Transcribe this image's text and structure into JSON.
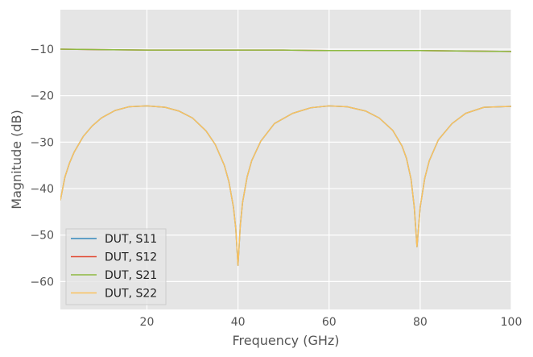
{
  "chart_data": {
    "type": "line",
    "xlabel": "Frequency (GHz)",
    "ylabel": "Magnitude (dB)",
    "xlim": [
      1,
      100
    ],
    "ylim": [
      -66,
      -1.5
    ],
    "x_ticks": [
      20,
      40,
      60,
      80,
      100
    ],
    "y_ticks": [
      -10,
      -20,
      -30,
      -40,
      -50,
      -60
    ],
    "x_tick_labels": [
      "20",
      "40",
      "60",
      "80",
      "100"
    ],
    "y_tick_labels": [
      "−10",
      "−20",
      "−30",
      "−40",
      "−50",
      "−60"
    ],
    "grid": true,
    "legend_position": "lower-left",
    "background": "#e5e5e5",
    "series": [
      {
        "name": "DUT, S11",
        "color": "#348abd",
        "x": [
          1,
          2,
          3,
          4,
          6,
          8,
          10,
          13,
          16,
          20,
          24,
          27,
          30,
          33,
          35,
          37,
          38,
          39,
          39.5,
          40,
          40.5,
          41,
          42,
          43,
          45,
          48,
          52,
          56,
          60,
          64,
          68,
          71,
          74,
          76,
          77,
          78,
          78.7,
          79.3,
          80,
          81,
          82,
          84,
          87,
          90,
          94,
          100
        ],
        "y": [
          -42.5,
          -37.5,
          -34.5,
          -32.2,
          -28.8,
          -26.5,
          -24.8,
          -23.2,
          -22.4,
          -22.2,
          -22.5,
          -23.3,
          -24.8,
          -27.6,
          -30.5,
          -35.0,
          -38.5,
          -44.0,
          -48.5,
          -56.5,
          -48.0,
          -43.0,
          -37.5,
          -34.0,
          -29.8,
          -26.0,
          -23.8,
          -22.6,
          -22.2,
          -22.4,
          -23.3,
          -24.8,
          -27.5,
          -30.8,
          -33.5,
          -38.0,
          -44.0,
          -52.5,
          -44.0,
          -37.8,
          -34.0,
          -29.5,
          -26.0,
          -23.8,
          -22.5,
          -22.3
        ]
      },
      {
        "name": "DUT, S12",
        "color": "#e24a33",
        "x": [
          1,
          10,
          20,
          30,
          40,
          50,
          60,
          70,
          80,
          90,
          100
        ],
        "y": [
          -10.0,
          -10.1,
          -10.2,
          -10.2,
          -10.2,
          -10.2,
          -10.3,
          -10.3,
          -10.3,
          -10.4,
          -10.5
        ]
      },
      {
        "name": "DUT, S21",
        "color": "#8eba42",
        "x": [
          1,
          10,
          20,
          30,
          40,
          50,
          60,
          70,
          80,
          90,
          100
        ],
        "y": [
          -10.0,
          -10.1,
          -10.2,
          -10.2,
          -10.2,
          -10.2,
          -10.3,
          -10.3,
          -10.3,
          -10.4,
          -10.5
        ]
      },
      {
        "name": "DUT, S22",
        "color": "#fbc15e",
        "x": [
          1,
          2,
          3,
          4,
          6,
          8,
          10,
          13,
          16,
          20,
          24,
          27,
          30,
          33,
          35,
          37,
          38,
          39,
          39.5,
          40,
          40.5,
          41,
          42,
          43,
          45,
          48,
          52,
          56,
          60,
          64,
          68,
          71,
          74,
          76,
          77,
          78,
          78.7,
          79.3,
          80,
          81,
          82,
          84,
          87,
          90,
          94,
          100
        ],
        "y": [
          -42.5,
          -37.5,
          -34.5,
          -32.2,
          -28.8,
          -26.5,
          -24.8,
          -23.2,
          -22.4,
          -22.2,
          -22.5,
          -23.3,
          -24.8,
          -27.6,
          -30.5,
          -35.0,
          -38.5,
          -44.0,
          -48.5,
          -56.5,
          -48.0,
          -43.0,
          -37.5,
          -34.0,
          -29.8,
          -26.0,
          -23.8,
          -22.6,
          -22.2,
          -22.4,
          -23.3,
          -24.8,
          -27.5,
          -30.8,
          -33.5,
          -38.0,
          -44.0,
          -52.5,
          -44.0,
          -37.8,
          -34.0,
          -29.5,
          -26.0,
          -23.8,
          -22.5,
          -22.3
        ]
      }
    ]
  }
}
